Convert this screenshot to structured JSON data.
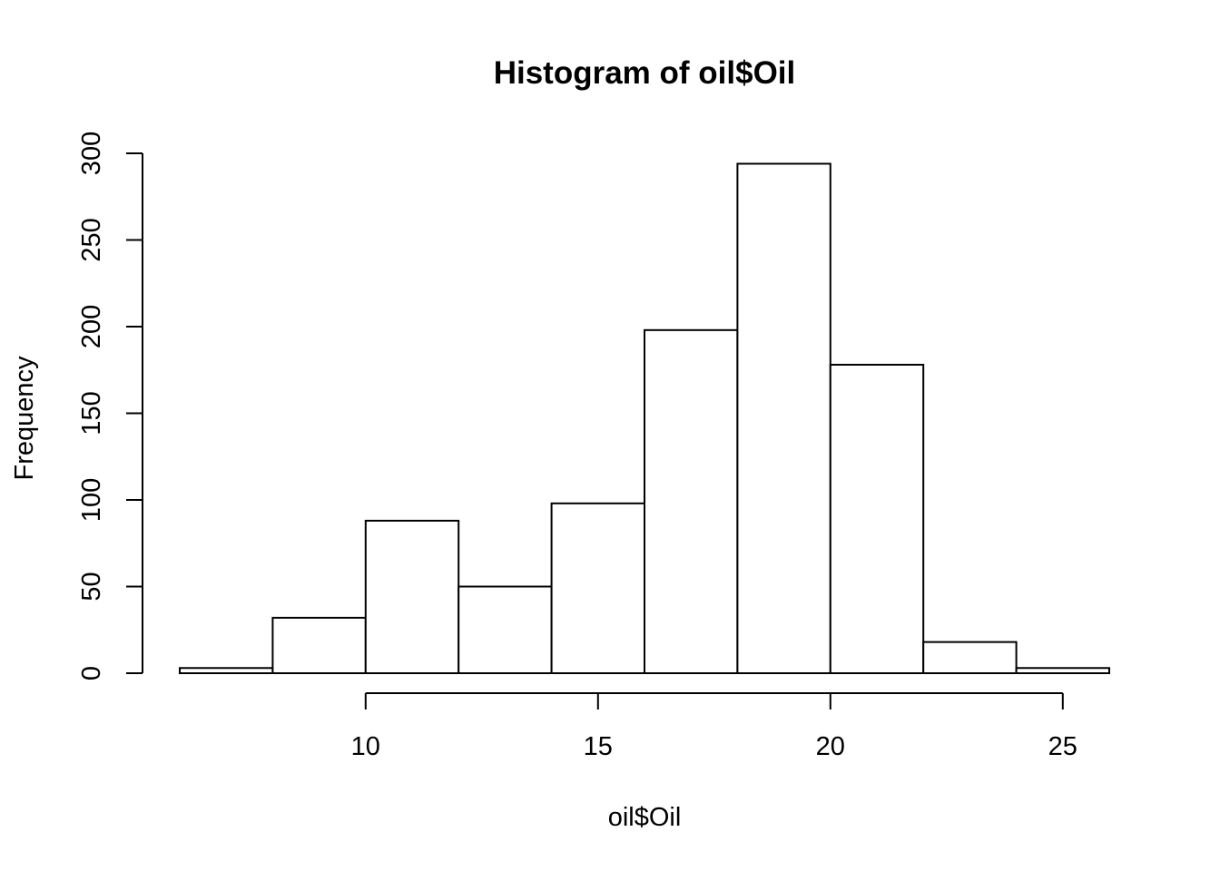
{
  "chart_data": {
    "type": "bar",
    "title": "Histogram of oil$Oil",
    "xlabel": "oil$Oil",
    "ylabel": "Frequency",
    "bins": [
      {
        "x0": 6,
        "x1": 8,
        "count": 3
      },
      {
        "x0": 8,
        "x1": 10,
        "count": 32
      },
      {
        "x0": 10,
        "x1": 12,
        "count": 88
      },
      {
        "x0": 12,
        "x1": 14,
        "count": 50
      },
      {
        "x0": 14,
        "x1": 16,
        "count": 98
      },
      {
        "x0": 16,
        "x1": 18,
        "count": 198
      },
      {
        "x0": 18,
        "x1": 20,
        "count": 294
      },
      {
        "x0": 20,
        "x1": 22,
        "count": 178
      },
      {
        "x0": 22,
        "x1": 24,
        "count": 18
      },
      {
        "x0": 24,
        "x1": 26,
        "count": 3
      }
    ],
    "xlim": [
      6,
      26
    ],
    "ylim": [
      0,
      300
    ],
    "x_ticks": [
      10,
      15,
      20,
      25
    ],
    "y_ticks": [
      0,
      50,
      100,
      150,
      200,
      250,
      300
    ],
    "x_tick_labels": [
      "10",
      "15",
      "20",
      "25"
    ],
    "y_tick_labels": [
      "0",
      "50",
      "100",
      "150",
      "200",
      "250",
      "300"
    ],
    "grid": false,
    "legend": "none",
    "colors": {
      "bar_fill": "#ffffff",
      "bar_stroke": "#000000",
      "axis": "#000000"
    }
  }
}
